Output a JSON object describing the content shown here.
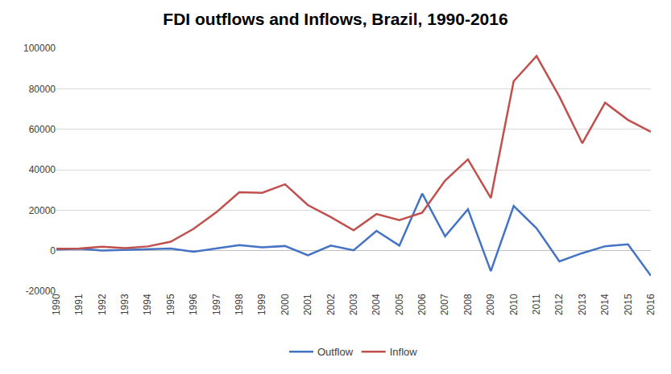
{
  "chart_data": {
    "type": "line",
    "title": "FDI outflows and Inflows, Brazil, 1990-2016",
    "categories": [
      "1990",
      "1991",
      "1992",
      "1993",
      "1994",
      "1995",
      "1996",
      "1997",
      "1998",
      "1999",
      "2000",
      "2001",
      "2002",
      "2003",
      "2004",
      "2005",
      "2006",
      "2007",
      "2008",
      "2009",
      "2010",
      "2011",
      "2012",
      "2013",
      "2014",
      "2015",
      "2016"
    ],
    "series": [
      {
        "name": "Outflow",
        "color": "#4472c4",
        "values": [
          600,
          1000,
          100,
          500,
          700,
          1100,
          -500,
          1100,
          2700,
          1700,
          2300,
          -2300,
          2500,
          200,
          9800,
          2500,
          28200,
          7100,
          20500,
          -10100,
          22100,
          11100,
          -5300,
          -1200,
          2200,
          3100,
          -12400
        ]
      },
      {
        "name": "Inflow",
        "color": "#c0504d",
        "values": [
          1000,
          1100,
          2000,
          1300,
          2100,
          4400,
          10800,
          19000,
          28900,
          28600,
          32800,
          22500,
          16600,
          10100,
          18100,
          15100,
          18800,
          34600,
          45100,
          26000,
          83700,
          96200,
          76100,
          53100,
          73100,
          64600,
          58700
        ]
      }
    ],
    "ylim": [
      -20000,
      100000
    ],
    "yticks": [
      -20000,
      0,
      20000,
      40000,
      60000,
      80000,
      100000
    ],
    "grid": true,
    "legend": "bottom"
  }
}
